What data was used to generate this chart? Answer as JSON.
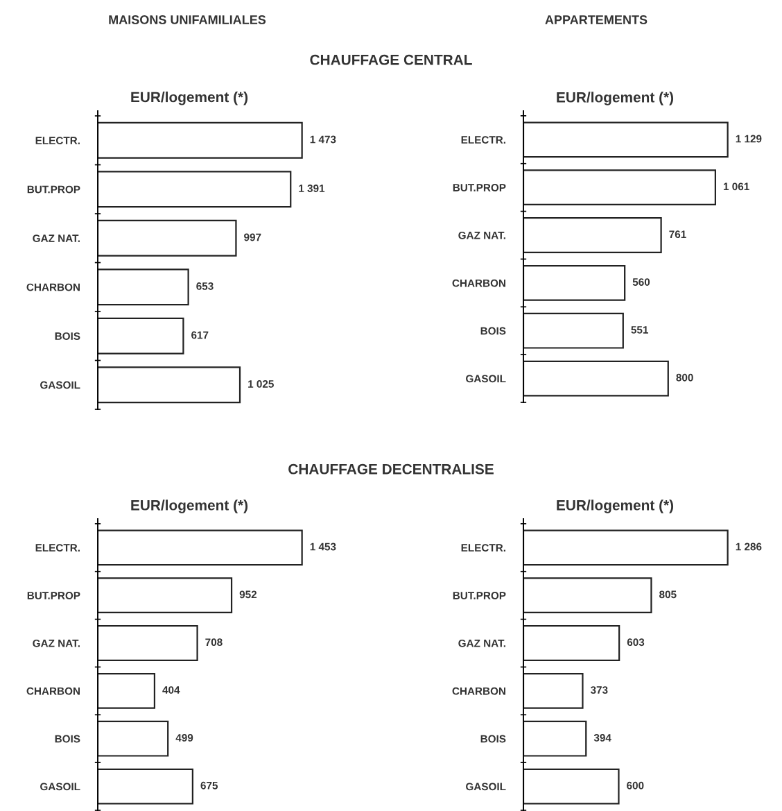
{
  "chart_data": [
    {
      "type": "bar",
      "orientation": "horizontal",
      "title": "MAISONS UNIFAMILIALES",
      "annotations": [
        "CHAUFFAGE CENTRAL"
      ],
      "xlabel": "EUR/logement (*)",
      "categories": [
        "ELECTR.",
        "BUT.PROP",
        "GAZ NAT.",
        "CHARBON",
        "BOIS",
        "GASOIL"
      ],
      "values": [
        1473,
        1391,
        997,
        653,
        617,
        1025
      ],
      "value_labels": [
        "1 473",
        "1 391",
        "997",
        "653",
        "617",
        "1 025"
      ],
      "color": "#ffffff",
      "legend": false,
      "grid": false
    },
    {
      "type": "bar",
      "orientation": "horizontal",
      "title": "APPARTEMENTS",
      "xlabel": "EUR/logement (*)",
      "categories": [
        "ELECTR.",
        "BUT.PROP",
        "GAZ NAT.",
        "CHARBON",
        "BOIS",
        "GASOIL"
      ],
      "values": [
        1129,
        1061,
        761,
        560,
        551,
        800
      ],
      "value_labels": [
        "1 129",
        "1 061",
        "761",
        "560",
        "551",
        "800"
      ],
      "color": "#ffffff",
      "legend": false,
      "grid": false
    },
    {
      "type": "bar",
      "orientation": "horizontal",
      "annotations": [
        "CHAUFFAGE DECENTRALISE"
      ],
      "xlabel": "EUR/logement (*)",
      "categories": [
        "ELECTR.",
        "BUT.PROP",
        "GAZ NAT.",
        "CHARBON",
        "BOIS",
        "GASOIL"
      ],
      "values": [
        1453,
        952,
        708,
        404,
        499,
        675
      ],
      "value_labels": [
        "1 453",
        "952",
        "708",
        "404",
        "499",
        "675"
      ],
      "color": "#ffffff",
      "legend": false,
      "grid": false
    },
    {
      "type": "bar",
      "orientation": "horizontal",
      "xlabel": "EUR/logement (*)",
      "categories": [
        "ELECTR.",
        "BUT.PROP",
        "GAZ NAT.",
        "CHARBON",
        "BOIS",
        "GASOIL"
      ],
      "values": [
        1286,
        805,
        603,
        373,
        394,
        600
      ],
      "value_labels": [
        "1 286",
        "805",
        "603",
        "373",
        "394",
        "600"
      ],
      "color": "#ffffff",
      "legend": false,
      "grid": false
    }
  ]
}
